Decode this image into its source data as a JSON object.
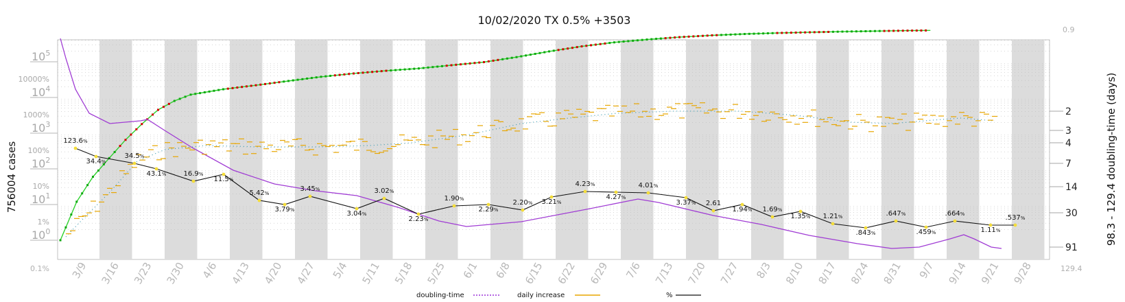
{
  "chart_data": {
    "type": "line",
    "title": "10/02/2020 TX 0.5% +3503",
    "ylabel_left": "756004 cases",
    "ylabel_right": "98.3 - 129.4 doubling-time (days)",
    "x_ticks": [
      "3/9",
      "3/16",
      "3/23",
      "3/30",
      "4/6",
      "4/13",
      "4/20",
      "4/27",
      "5/4",
      "5/11",
      "5/18",
      "5/25",
      "6/1",
      "6/8",
      "6/15",
      "6/22",
      "6/29",
      "7/6",
      "7/13",
      "7/20",
      "7/27",
      "8/3",
      "8/10",
      "8/17",
      "8/24",
      "8/31",
      "9/7",
      "9/14",
      "9/21",
      "9/28"
    ],
    "left_ticks": [
      {
        "base": "10",
        "exp": "0",
        "pct": "1%"
      },
      {
        "base": "10",
        "exp": "1",
        "pct": "10%"
      },
      {
        "base": "10",
        "exp": "2",
        "pct": "100%"
      },
      {
        "base": "10",
        "exp": "3",
        "pct": "1000%"
      },
      {
        "base": "10",
        "exp": "4",
        "pct": "10000%"
      },
      {
        "base": "10",
        "exp": "5",
        "pct": ""
      }
    ],
    "left_bottom_label": "0.1%",
    "right_ticks": [
      "2",
      "3",
      "4",
      "7",
      "14",
      "30",
      "91"
    ],
    "right_top_label": "0.9",
    "right_bottom_label": "129.4",
    "legend": [
      {
        "name": "doubling-time",
        "color": "#9b30d9",
        "style": "dotted"
      },
      {
        "name": "daily increase",
        "color": "#e8a600",
        "style": "solid"
      },
      {
        "name": "%",
        "color": "#111111",
        "style": "solid"
      }
    ],
    "pct_labels": [
      "123.6",
      "34.4",
      "34.5",
      "43.1",
      "16.9",
      "11.5",
      "5.42",
      "3.79",
      "3.45",
      "3.04",
      "3.02",
      "2.23",
      "1.90",
      "2.29",
      "2.20",
      "3.21",
      "4.23",
      "4.27",
      "4.01",
      "3.37",
      "2.61",
      "1.94",
      "1.69",
      "1.35",
      "1.21",
      ".843",
      ".647",
      ".459",
      ".664",
      "1.11",
      ".537"
    ],
    "pct_label_suffixes": [
      "%",
      "%",
      "%",
      "%",
      "%",
      "%",
      "%",
      "%",
      "%",
      "%",
      "%",
      "%",
      "%",
      "%",
      "%",
      "%",
      "%",
      "%",
      "%",
      "%",
      "",
      "%",
      "%",
      "%",
      "%",
      "%",
      "%",
      "%",
      "%",
      "%",
      "%"
    ],
    "pct_values": [
      123.6,
      34.4,
      34.5,
      43.1,
      16.9,
      11.5,
      5.42,
      3.79,
      3.45,
      3.04,
      3.02,
      2.23,
      1.9,
      2.29,
      2.2,
      3.21,
      4.23,
      4.27,
      4.01,
      3.37,
      2.61,
      1.94,
      1.69,
      1.35,
      1.21,
      0.843,
      0.647,
      0.459,
      0.664,
      1.11,
      0.537
    ],
    "cases_series": [
      {
        "week": 0,
        "cases": 1
      },
      {
        "week": 0.5,
        "cases": 12
      },
      {
        "week": 1,
        "cases": 60
      },
      {
        "week": 1.5,
        "cases": 200
      },
      {
        "week": 2,
        "cases": 650
      },
      {
        "week": 2.5,
        "cases": 1800
      },
      {
        "week": 3,
        "cases": 4500
      },
      {
        "week": 3.5,
        "cases": 8000
      },
      {
        "week": 4,
        "cases": 12000
      },
      {
        "week": 5,
        "cases": 17000
      },
      {
        "week": 6,
        "cases": 22000
      },
      {
        "week": 7,
        "cases": 29000
      },
      {
        "week": 8,
        "cases": 38000
      },
      {
        "week": 9,
        "cases": 47000
      },
      {
        "week": 10,
        "cases": 56000
      },
      {
        "week": 11,
        "cases": 65000
      },
      {
        "week": 12,
        "cases": 80000
      },
      {
        "week": 13,
        "cases": 98000
      },
      {
        "week": 14,
        "cases": 135000
      },
      {
        "week": 15,
        "cases": 195000
      },
      {
        "week": 16,
        "cases": 270000
      },
      {
        "week": 17,
        "cases": 350000
      },
      {
        "week": 18,
        "cases": 420000
      },
      {
        "week": 19,
        "cases": 490000
      },
      {
        "week": 20,
        "cases": 550000
      },
      {
        "week": 21,
        "cases": 600000
      },
      {
        "week": 22,
        "cases": 640000
      },
      {
        "week": 23,
        "cases": 670000
      },
      {
        "week": 24,
        "cases": 700000
      },
      {
        "week": 25,
        "cases": 725000
      },
      {
        "week": 26,
        "cases": 745000
      },
      {
        "week": 26.7,
        "cases": 756004
      }
    ]
  }
}
